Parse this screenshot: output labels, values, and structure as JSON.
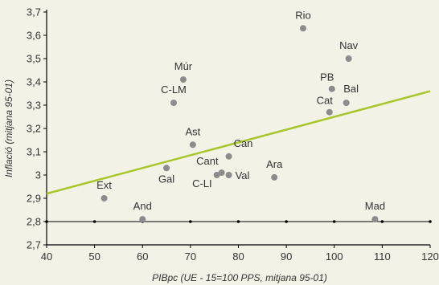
{
  "chart_data": {
    "type": "scatter",
    "title": "",
    "xlabel": "PIBpc (UE - 15=100 PPS, mitjana 95-01)",
    "ylabel": "Inflació (mitjana 95-01)",
    "xlim": [
      40,
      120
    ],
    "ylim": [
      2.7,
      3.7
    ],
    "x_ticks": [
      "40",
      "50",
      "60",
      "70",
      "80",
      "90",
      "100",
      "110",
      "120"
    ],
    "y_ticks": [
      "2,7",
      "2,8",
      "2,9",
      "3",
      "3,1",
      "3,2",
      "3,3",
      "3,4",
      "3,5",
      "3,6",
      "3,7"
    ],
    "points": [
      {
        "label": "Rio",
        "x": 93.5,
        "y": 3.63
      },
      {
        "label": "Nav",
        "x": 103,
        "y": 3.5
      },
      {
        "label": "Múr",
        "x": 68.5,
        "y": 3.41
      },
      {
        "label": "PB",
        "x": 99.5,
        "y": 3.37
      },
      {
        "label": "C-LM",
        "x": 66.5,
        "y": 3.31
      },
      {
        "label": "Bal",
        "x": 102.5,
        "y": 3.31
      },
      {
        "label": "Cat",
        "x": 99,
        "y": 3.27
      },
      {
        "label": "Ast",
        "x": 70.5,
        "y": 3.13
      },
      {
        "label": "Can",
        "x": 78,
        "y": 3.08
      },
      {
        "label": "Gal",
        "x": 65,
        "y": 3.03
      },
      {
        "label": "Cant",
        "x": 76.5,
        "y": 3.01
      },
      {
        "label": "C-LI",
        "x": 75.5,
        "y": 3.0
      },
      {
        "label": "Val",
        "x": 78,
        "y": 3.0
      },
      {
        "label": "Ara",
        "x": 87.5,
        "y": 2.99
      },
      {
        "label": "Ext",
        "x": 52,
        "y": 2.9
      },
      {
        "label": "And",
        "x": 60,
        "y": 2.81
      },
      {
        "label": "Mad",
        "x": 108.5,
        "y": 2.81
      }
    ],
    "trendline": {
      "x": [
        40,
        120
      ],
      "y": [
        2.92,
        3.36
      ]
    },
    "reference_line": {
      "y": 2.8
    },
    "grid": false,
    "legend": "none",
    "colors": {
      "background": "#f2f2e7",
      "points": "#8c8c8c",
      "trendline": "#a8c62a",
      "axis": "#000000",
      "text": "#333333"
    }
  }
}
